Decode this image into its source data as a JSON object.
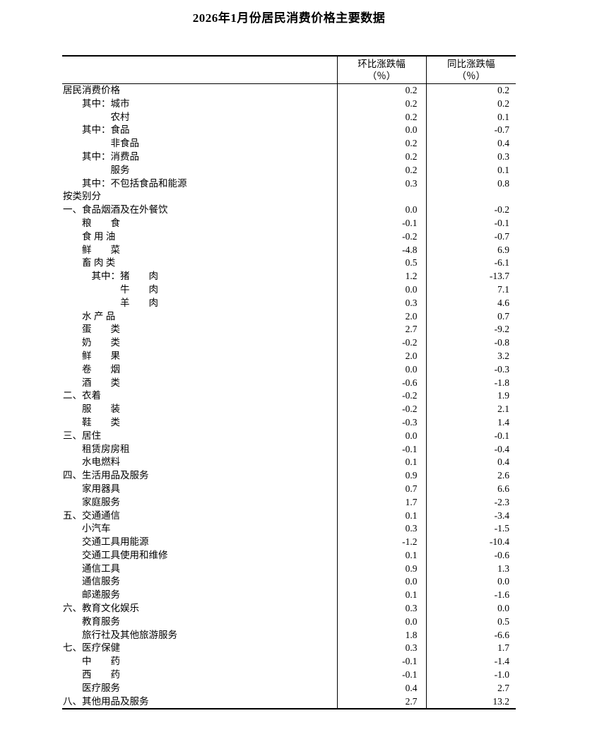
{
  "title": "2026年1月份居民消费价格主要数据",
  "table": {
    "columns": [
      {
        "line1": "",
        "line2": ""
      },
      {
        "line1": "环比涨跌幅",
        "line2": "（％）"
      },
      {
        "line1": "同比涨跌幅",
        "line2": "（％）"
      }
    ],
    "rows": [
      {
        "label": "居民消费价格",
        "mom": "0.2",
        "yoy": "0.2"
      },
      {
        "label": "　　其中：城市",
        "mom": "0.2",
        "yoy": "0.2"
      },
      {
        "label": "　　　　　农村",
        "mom": "0.2",
        "yoy": "0.1"
      },
      {
        "label": "　　其中：食品",
        "mom": "0.0",
        "yoy": "-0.7"
      },
      {
        "label": "　　　　　非食品",
        "mom": "0.2",
        "yoy": "0.4"
      },
      {
        "label": "　　其中：消费品",
        "mom": "0.2",
        "yoy": "0.3"
      },
      {
        "label": "　　　　　服务",
        "mom": "0.2",
        "yoy": "0.1"
      },
      {
        "label": "　　其中：不包括食品和能源",
        "mom": "0.3",
        "yoy": "0.8"
      },
      {
        "label": "按类别分",
        "mom": "",
        "yoy": ""
      },
      {
        "label": "一、食品烟酒及在外餐饮",
        "mom": "0.0",
        "yoy": "-0.2"
      },
      {
        "label": "　　粮　　食",
        "mom": "-0.1",
        "yoy": "-0.1"
      },
      {
        "label": "　　食 用 油",
        "mom": "-0.2",
        "yoy": "-0.7"
      },
      {
        "label": "　　鲜　　菜",
        "mom": "-4.8",
        "yoy": "6.9"
      },
      {
        "label": "　　畜 肉 类",
        "mom": "0.5",
        "yoy": "-6.1"
      },
      {
        "label": "　　　其中：猪　　肉",
        "mom": "1.2",
        "yoy": "-13.7"
      },
      {
        "label": "　　　　　　牛　　肉",
        "mom": "0.0",
        "yoy": "7.1"
      },
      {
        "label": "　　　　　　羊　　肉",
        "mom": "0.3",
        "yoy": "4.6"
      },
      {
        "label": "　　水 产 品",
        "mom": "2.0",
        "yoy": "0.7"
      },
      {
        "label": "　　蛋　　类",
        "mom": "2.7",
        "yoy": "-9.2"
      },
      {
        "label": "　　奶　　类",
        "mom": "-0.2",
        "yoy": "-0.8"
      },
      {
        "label": "　　鲜　　果",
        "mom": "2.0",
        "yoy": "3.2"
      },
      {
        "label": "　　卷　　烟",
        "mom": "0.0",
        "yoy": "-0.3"
      },
      {
        "label": "　　酒　　类",
        "mom": "-0.6",
        "yoy": "-1.8"
      },
      {
        "label": "二、衣着",
        "mom": "-0.2",
        "yoy": "1.9"
      },
      {
        "label": "　　服　　装",
        "mom": "-0.2",
        "yoy": "2.1"
      },
      {
        "label": "　　鞋　　类",
        "mom": "-0.3",
        "yoy": "1.4"
      },
      {
        "label": "三、居住",
        "mom": "0.0",
        "yoy": "-0.1"
      },
      {
        "label": "　　租赁房房租",
        "mom": "-0.1",
        "yoy": "-0.4"
      },
      {
        "label": "　　水电燃料",
        "mom": "0.1",
        "yoy": "0.4"
      },
      {
        "label": "四、生活用品及服务",
        "mom": "0.9",
        "yoy": "2.6"
      },
      {
        "label": "　　家用器具",
        "mom": "0.7",
        "yoy": "6.6"
      },
      {
        "label": "　　家庭服务",
        "mom": "1.7",
        "yoy": "-2.3"
      },
      {
        "label": "五、交通通信",
        "mom": "0.1",
        "yoy": "-3.4"
      },
      {
        "label": "　　小汽车",
        "mom": "0.3",
        "yoy": "-1.5"
      },
      {
        "label": "　　交通工具用能源",
        "mom": "-1.2",
        "yoy": "-10.4"
      },
      {
        "label": "　　交通工具使用和维修",
        "mom": "0.1",
        "yoy": "-0.6"
      },
      {
        "label": "　　通信工具",
        "mom": "0.9",
        "yoy": "1.3"
      },
      {
        "label": "　　通信服务",
        "mom": "0.0",
        "yoy": "0.0"
      },
      {
        "label": "　　邮递服务",
        "mom": "0.1",
        "yoy": "-1.6"
      },
      {
        "label": "六、教育文化娱乐",
        "mom": "0.3",
        "yoy": "0.0"
      },
      {
        "label": "　　教育服务",
        "mom": "0.0",
        "yoy": "0.5"
      },
      {
        "label": "　　旅行社及其他旅游服务",
        "mom": "1.8",
        "yoy": "-6.6"
      },
      {
        "label": "七、医疗保健",
        "mom": "0.3",
        "yoy": "1.7"
      },
      {
        "label": "　　中　　药",
        "mom": "-0.1",
        "yoy": "-1.4"
      },
      {
        "label": "　　西　　药",
        "mom": "-0.1",
        "yoy": "-1.0"
      },
      {
        "label": "　　医疗服务",
        "mom": "0.4",
        "yoy": "2.7"
      },
      {
        "label": "八、其他用品及服务",
        "mom": "2.7",
        "yoy": "13.2"
      }
    ]
  }
}
